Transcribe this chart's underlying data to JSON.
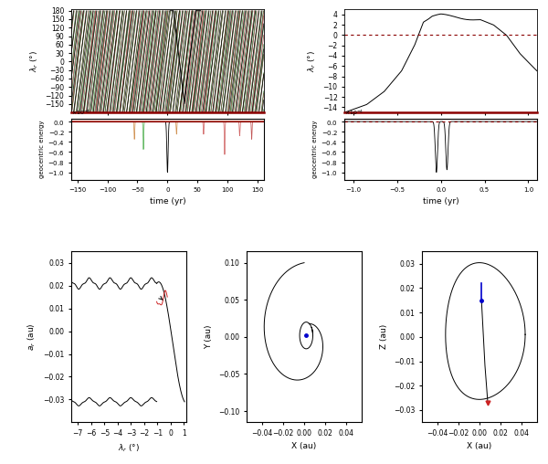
{
  "fig_width": 6.0,
  "fig_height": 5.08,
  "dpi": 100,
  "top_left": {
    "ylabel": "λ_r (°)",
    "xlabel": "time (yr)",
    "ylim": [
      -180,
      185
    ],
    "xlim": [
      -160,
      160
    ],
    "yticks": [
      -150,
      -120,
      -90,
      -60,
      -30,
      0,
      30,
      60,
      90,
      120,
      150,
      180
    ],
    "xticks": [
      -150,
      -100,
      -50,
      0,
      50,
      100,
      150
    ],
    "energy_ylim": [
      -0.000115,
      5e-06
    ],
    "energy_yticks": [
      0.0,
      -2e-05,
      -4e-05,
      -6e-05,
      -8e-05,
      -0.0001
    ]
  },
  "top_right": {
    "ylabel": "λ_r (°)",
    "xlabel": "time (yr)",
    "ylim": [
      -15,
      5
    ],
    "xlim": [
      -1.1,
      1.1
    ],
    "yticks": [
      -14,
      -12,
      -10,
      -8,
      -6,
      -4,
      -2,
      0,
      2,
      4
    ],
    "xticks": [
      -1,
      -0.5,
      0,
      0.5,
      1
    ],
    "energy_ylim": [
      -0.000115,
      5e-06
    ],
    "energy_yticks": [
      0.0,
      -2e-05,
      -4e-05,
      -6e-05,
      -8e-05,
      -0.0001
    ]
  },
  "bottom_left": {
    "xlabel": "λ_r (°)",
    "ylabel": "a_r (au)",
    "xlim": [
      -7.5,
      1.2
    ],
    "ylim": [
      -0.04,
      0.035
    ],
    "xticks": [
      -7,
      -6,
      -5,
      -4,
      -3,
      -2,
      -1,
      0,
      1
    ],
    "yticks": [
      -0.03,
      -0.02,
      -0.01,
      0,
      0.01,
      0.02,
      0.03
    ]
  },
  "bottom_mid": {
    "xlabel": "X (au)",
    "ylabel": "Y (au)",
    "xlim": [
      -0.055,
      0.055
    ],
    "ylim": [
      -0.115,
      0.115
    ],
    "xticks": [
      -0.04,
      -0.02,
      0,
      0.02,
      0.04
    ],
    "yticks": [
      -0.1,
      -0.05,
      0,
      0.05,
      0.1
    ]
  },
  "bottom_right": {
    "xlabel": "X (au)",
    "ylabel": "Z (au)",
    "xlim": [
      -0.055,
      0.055
    ],
    "ylim": [
      -0.035,
      0.035
    ],
    "xticks": [
      -0.04,
      -0.02,
      0,
      0.02,
      0.04
    ],
    "yticks": [
      -0.03,
      -0.02,
      -0.01,
      0,
      0.01,
      0.02,
      0.03
    ]
  }
}
